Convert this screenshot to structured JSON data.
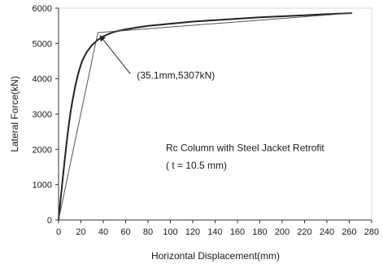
{
  "chart_data": {
    "type": "line",
    "title": "",
    "xlabel": "Horizontal Displacement(mm)",
    "ylabel": "Lateral Force(kN)",
    "xlim": [
      0,
      280
    ],
    "ylim": [
      0,
      6000
    ],
    "x_ticks": [
      "0",
      "20",
      "40",
      "60",
      "80",
      "100",
      "120",
      "140",
      "160",
      "180",
      "200",
      "220",
      "240",
      "260",
      "280"
    ],
    "y_ticks": [
      "0",
      "1000",
      "2000",
      "3000",
      "4000",
      "5000",
      "6000"
    ],
    "grid": false,
    "series": [
      {
        "style": "curve",
        "color": "#222222",
        "x": [
          0,
          2,
          4,
          6,
          8,
          10,
          12,
          15,
          18,
          21,
          25,
          30,
          35,
          40,
          45,
          50,
          60,
          70,
          80,
          100,
          120,
          140,
          160,
          180,
          200,
          220,
          240,
          262
        ],
        "y": [
          0,
          650,
          1250,
          1850,
          2400,
          2900,
          3300,
          3800,
          4200,
          4500,
          4750,
          4960,
          5100,
          5200,
          5270,
          5330,
          5400,
          5450,
          5500,
          5560,
          5620,
          5660,
          5700,
          5740,
          5770,
          5800,
          5830,
          5860
        ]
      },
      {
        "style": "bilinear",
        "color": "#555555",
        "x": [
          0,
          35.1,
          262
        ],
        "y": [
          0,
          5307,
          5860
        ]
      }
    ],
    "annotations": [
      {
        "text": "(35.1mm,5307kN)",
        "arrow_to": [
          35.1,
          5307
        ],
        "text_at": [
          70,
          4000
        ]
      },
      {
        "text": "Rc Column with Steel Jacket Retrofit",
        "text_at": [
          96,
          1950
        ]
      },
      {
        "text": "( t = 10.5 mm)",
        "text_at": [
          96,
          1450
        ]
      }
    ]
  }
}
